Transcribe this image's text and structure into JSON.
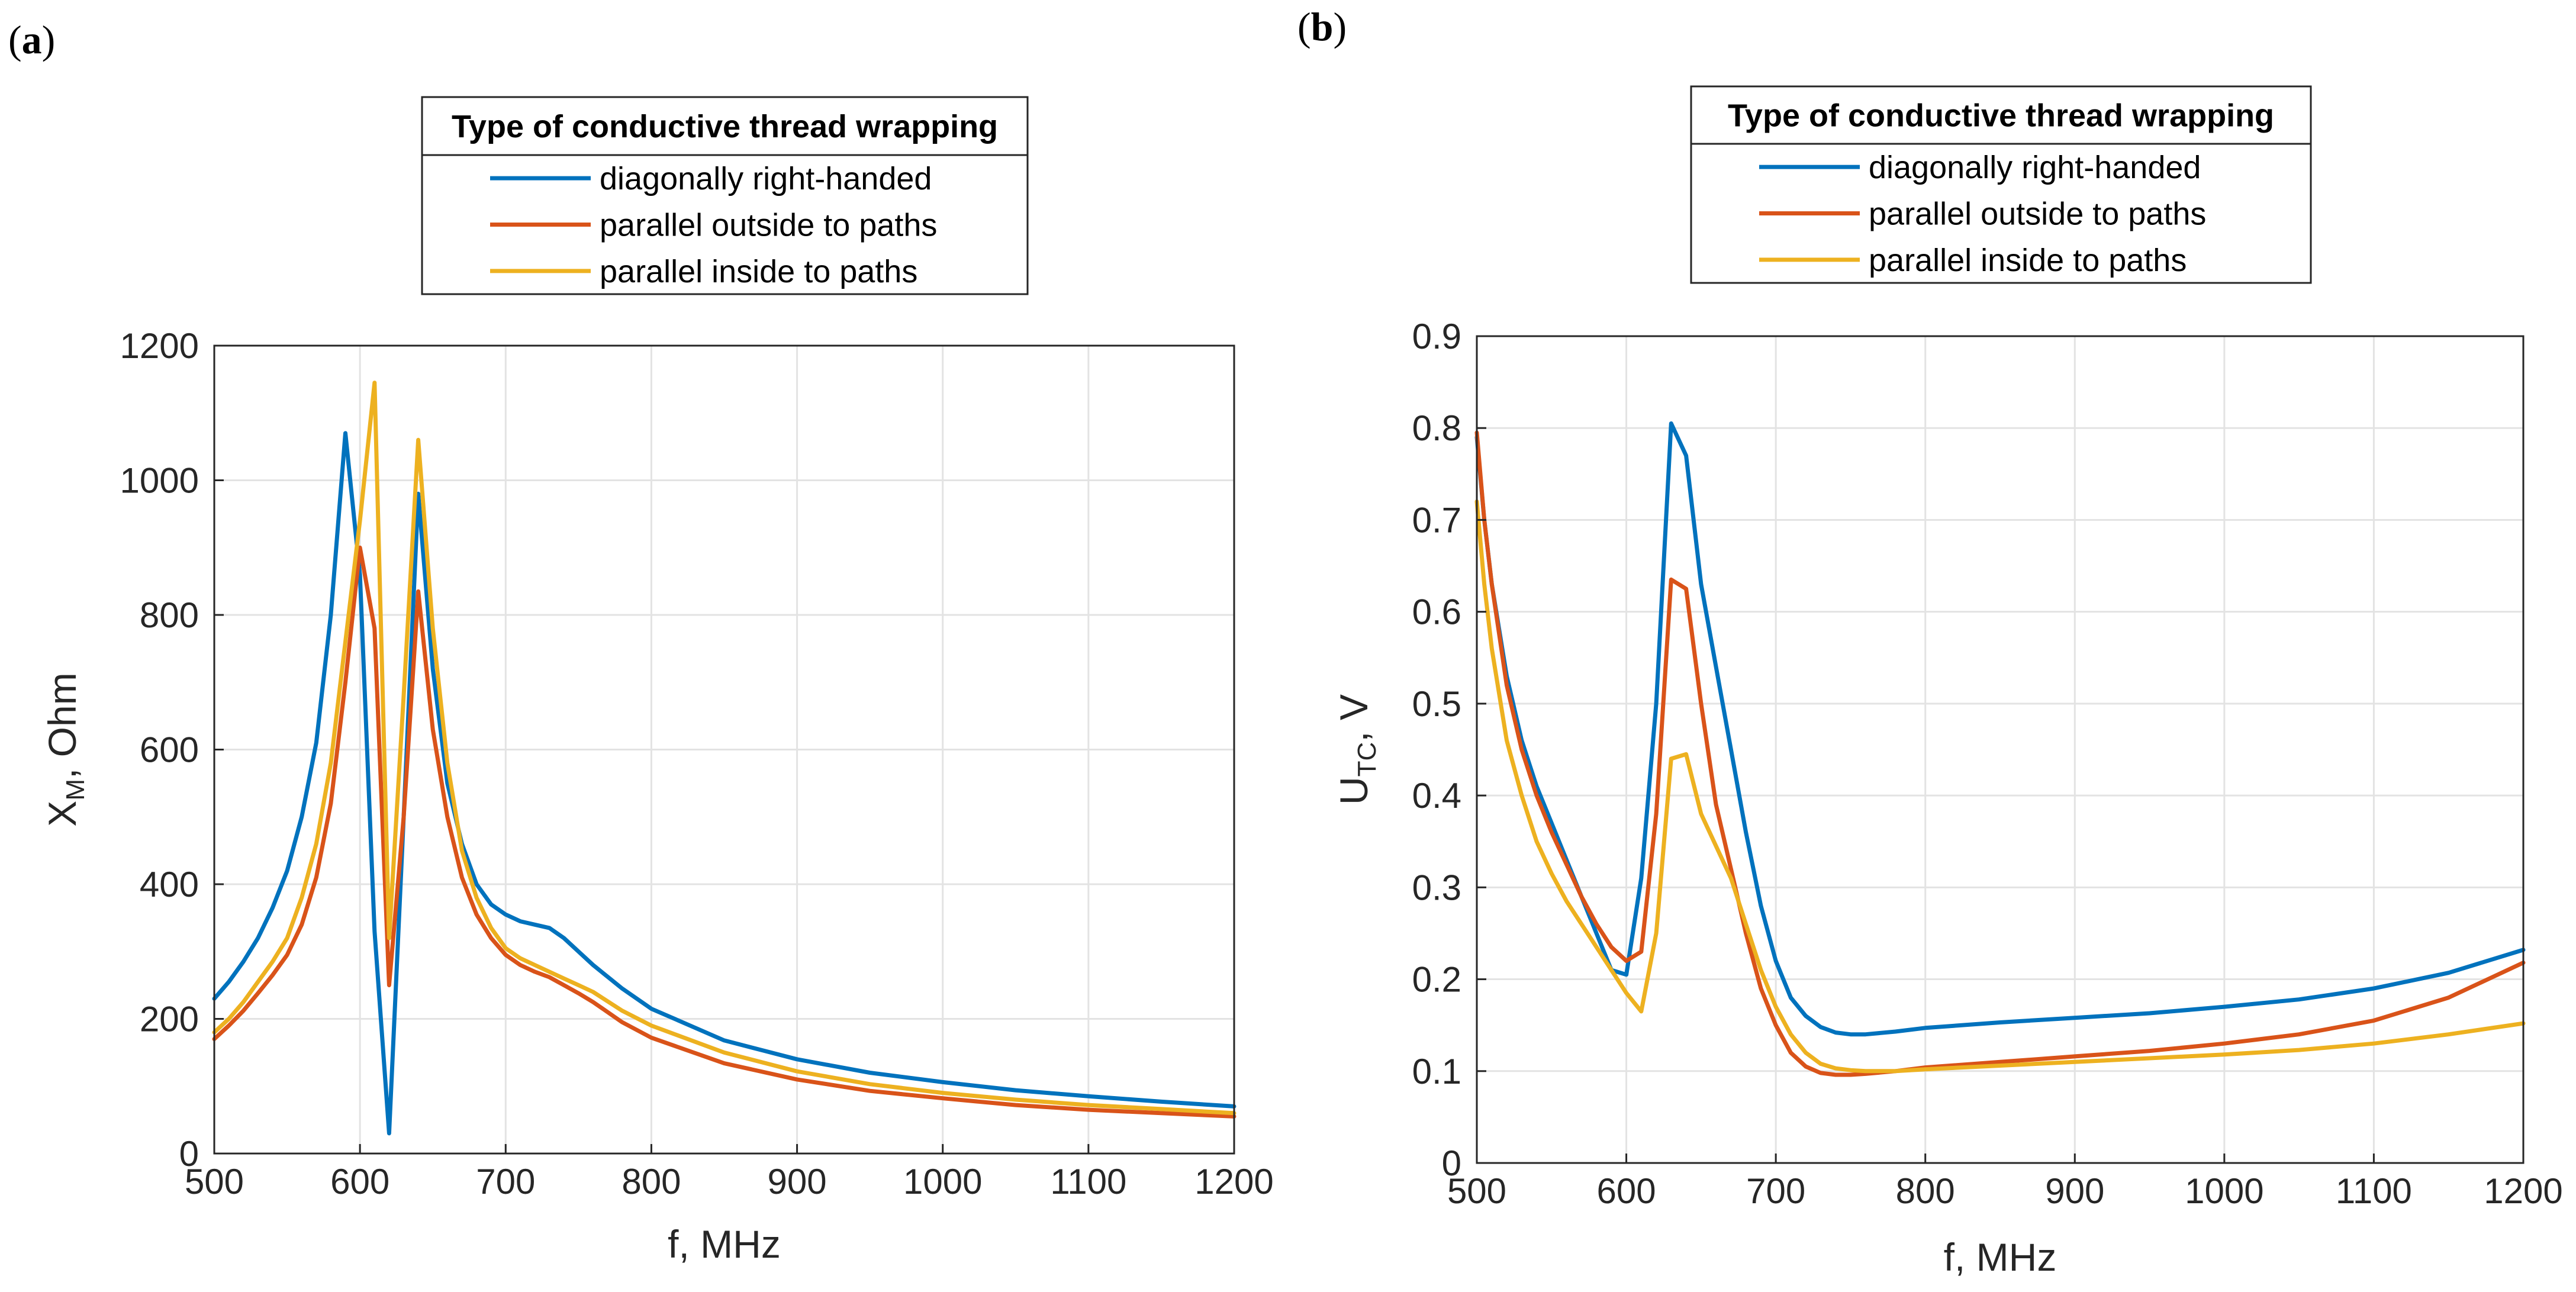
{
  "legend": {
    "title": "Type of conductive thread wrapping",
    "entries": [
      "diagonally right-handed",
      "parallel outside to paths",
      "parallel inside to paths"
    ]
  },
  "colors": {
    "diagonally right-handed": "#0072BD",
    "parallel outside to paths": "#D95319",
    "parallel inside to paths": "#EDB120"
  },
  "chart_data": [
    {
      "panel": "(a)",
      "type": "line",
      "xlabel": "f, MHz",
      "ylabel_main": "X",
      "ylabel_sub": "M",
      "ylabel_rest": ", Ohm",
      "xlim": [
        500,
        1200
      ],
      "ylim": [
        0,
        1200
      ],
      "xticks": [
        500,
        600,
        700,
        800,
        900,
        1000,
        1100,
        1200
      ],
      "yticks": [
        0,
        200,
        400,
        600,
        800,
        1000,
        1200
      ],
      "grid": true,
      "legend_position": "top-center outside",
      "series": [
        {
          "name": "diagonally right-handed",
          "x": [
            500,
            510,
            520,
            530,
            540,
            550,
            560,
            570,
            580,
            590,
            600,
            610,
            620,
            630,
            640,
            650,
            660,
            670,
            680,
            690,
            700,
            710,
            720,
            730,
            740,
            750,
            760,
            780,
            800,
            850,
            900,
            950,
            1000,
            1050,
            1100,
            1150,
            1200
          ],
          "y": [
            230,
            255,
            285,
            320,
            365,
            420,
            500,
            610,
            800,
            1070,
            860,
            330,
            30,
            500,
            980,
            720,
            550,
            460,
            400,
            370,
            355,
            345,
            340,
            335,
            320,
            300,
            280,
            245,
            215,
            168,
            140,
            120,
            106,
            94,
            85,
            77,
            70
          ]
        },
        {
          "name": "parallel outside to paths",
          "x": [
            500,
            510,
            520,
            530,
            540,
            550,
            560,
            570,
            580,
            590,
            600,
            610,
            620,
            630,
            640,
            650,
            660,
            670,
            680,
            690,
            700,
            710,
            720,
            730,
            740,
            750,
            760,
            780,
            800,
            850,
            900,
            950,
            1000,
            1050,
            1100,
            1150,
            1200
          ],
          "y": [
            170,
            190,
            212,
            238,
            265,
            295,
            340,
            410,
            520,
            700,
            900,
            780,
            250,
            500,
            835,
            630,
            500,
            410,
            355,
            320,
            295,
            280,
            270,
            262,
            250,
            238,
            225,
            195,
            172,
            134,
            110,
            93,
            82,
            72,
            65,
            60,
            55
          ]
        },
        {
          "name": "parallel inside to paths",
          "x": [
            500,
            510,
            520,
            530,
            540,
            550,
            560,
            570,
            580,
            590,
            600,
            610,
            620,
            630,
            640,
            650,
            660,
            670,
            680,
            690,
            700,
            710,
            720,
            730,
            740,
            750,
            760,
            780,
            800,
            850,
            900,
            950,
            1000,
            1050,
            1100,
            1150,
            1200
          ],
          "y": [
            180,
            200,
            225,
            255,
            285,
            320,
            380,
            460,
            580,
            760,
            940,
            1145,
            320,
            680,
            1060,
            780,
            580,
            450,
            380,
            335,
            305,
            290,
            280,
            270,
            260,
            250,
            240,
            212,
            190,
            150,
            122,
            103,
            90,
            80,
            72,
            66,
            60
          ]
        }
      ]
    },
    {
      "panel": "(b)",
      "type": "line",
      "xlabel": "f, MHz",
      "ylabel_main": "U",
      "ylabel_sub": "TC",
      "ylabel_rest": ", V",
      "xlim": [
        500,
        1200
      ],
      "ylim": [
        0,
        0.9
      ],
      "xticks": [
        500,
        600,
        700,
        800,
        900,
        1000,
        1100,
        1200
      ],
      "yticks": [
        0,
        0.1,
        0.2,
        0.3,
        0.4,
        0.5,
        0.6,
        0.7,
        0.8,
        0.9
      ],
      "grid": true,
      "legend_position": "top-center outside",
      "series": [
        {
          "name": "diagonally right-handed",
          "x": [
            500,
            505,
            510,
            520,
            530,
            540,
            550,
            560,
            570,
            580,
            590,
            600,
            610,
            620,
            630,
            640,
            650,
            660,
            670,
            680,
            690,
            700,
            710,
            720,
            730,
            740,
            750,
            760,
            780,
            800,
            850,
            900,
            950,
            1000,
            1050,
            1100,
            1150,
            1200
          ],
          "y": [
            0.79,
            0.7,
            0.63,
            0.53,
            0.46,
            0.41,
            0.37,
            0.33,
            0.29,
            0.25,
            0.21,
            0.205,
            0.31,
            0.5,
            0.805,
            0.77,
            0.63,
            0.54,
            0.45,
            0.36,
            0.28,
            0.22,
            0.18,
            0.16,
            0.148,
            0.142,
            0.14,
            0.14,
            0.143,
            0.147,
            0.153,
            0.158,
            0.163,
            0.17,
            0.178,
            0.19,
            0.207,
            0.232
          ]
        },
        {
          "name": "parallel outside to paths",
          "x": [
            500,
            505,
            510,
            520,
            530,
            540,
            550,
            560,
            570,
            580,
            590,
            600,
            610,
            620,
            630,
            640,
            650,
            660,
            670,
            680,
            690,
            700,
            710,
            720,
            730,
            740,
            750,
            760,
            780,
            800,
            850,
            900,
            950,
            1000,
            1050,
            1100,
            1150,
            1200
          ],
          "y": [
            0.795,
            0.7,
            0.63,
            0.52,
            0.45,
            0.4,
            0.36,
            0.325,
            0.29,
            0.26,
            0.235,
            0.22,
            0.23,
            0.38,
            0.635,
            0.625,
            0.5,
            0.39,
            0.32,
            0.25,
            0.19,
            0.15,
            0.12,
            0.105,
            0.098,
            0.096,
            0.096,
            0.097,
            0.1,
            0.104,
            0.11,
            0.116,
            0.122,
            0.13,
            0.14,
            0.155,
            0.18,
            0.218
          ]
        },
        {
          "name": "parallel inside to paths",
          "x": [
            500,
            505,
            510,
            520,
            530,
            540,
            550,
            560,
            570,
            580,
            590,
            600,
            610,
            620,
            630,
            640,
            650,
            660,
            670,
            680,
            690,
            700,
            710,
            720,
            730,
            740,
            750,
            760,
            780,
            800,
            850,
            900,
            950,
            1000,
            1050,
            1100,
            1150,
            1200
          ],
          "y": [
            0.72,
            0.63,
            0.56,
            0.46,
            0.4,
            0.35,
            0.315,
            0.285,
            0.26,
            0.235,
            0.21,
            0.185,
            0.165,
            0.25,
            0.44,
            0.445,
            0.38,
            0.345,
            0.31,
            0.26,
            0.21,
            0.17,
            0.14,
            0.12,
            0.108,
            0.103,
            0.101,
            0.1,
            0.1,
            0.102,
            0.106,
            0.11,
            0.114,
            0.118,
            0.123,
            0.13,
            0.14,
            0.152
          ]
        }
      ]
    }
  ]
}
